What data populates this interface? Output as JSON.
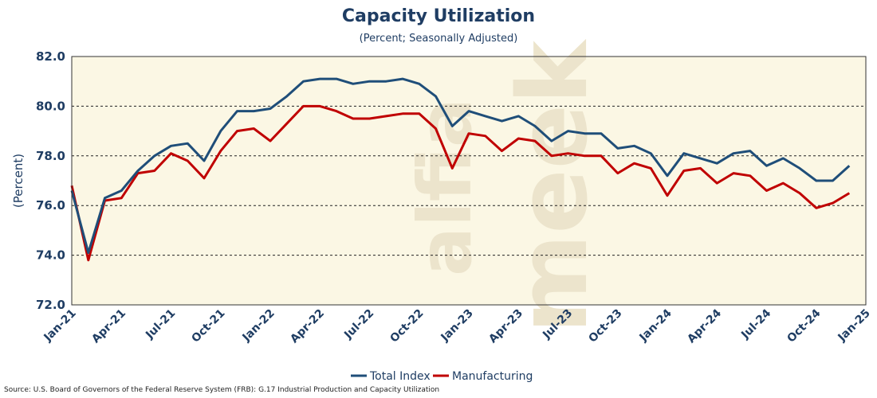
{
  "chart_data": {
    "type": "line",
    "title": "Capacity Utilization",
    "subtitle": "(Percent; Seasonally Adjusted)",
    "ylabel": "(Percent)",
    "xlabel": "",
    "ylim": [
      72.0,
      82.0
    ],
    "y_ticks": [
      "72.0",
      "74.0",
      "76.0",
      "78.0",
      "80.0",
      "82.0"
    ],
    "x_tick_labels": [
      "Jan-21",
      "Apr-21",
      "Jul-21",
      "Oct-21",
      "Jan-22",
      "Apr-22",
      "Jul-22",
      "Oct-22",
      "Jan-23",
      "Apr-23",
      "Jul-23",
      "Oct-23",
      "Jan-24",
      "Apr-24",
      "Jul-24",
      "Oct-24",
      "Jan-25"
    ],
    "x": [
      "2021-01",
      "2021-02",
      "2021-03",
      "2021-04",
      "2021-05",
      "2021-06",
      "2021-07",
      "2021-08",
      "2021-09",
      "2021-10",
      "2021-11",
      "2021-12",
      "2022-01",
      "2022-02",
      "2022-03",
      "2022-04",
      "2022-05",
      "2022-06",
      "2022-07",
      "2022-08",
      "2022-09",
      "2022-10",
      "2022-11",
      "2022-12",
      "2023-01",
      "2023-02",
      "2023-03",
      "2023-04",
      "2023-05",
      "2023-06",
      "2023-07",
      "2023-08",
      "2023-09",
      "2023-10",
      "2023-11",
      "2023-12",
      "2024-01",
      "2024-02",
      "2024-03",
      "2024-04",
      "2024-05",
      "2024-06",
      "2024-07",
      "2024-08",
      "2024-09",
      "2024-10",
      "2024-11",
      "2024-12"
    ],
    "series": [
      {
        "name": "Total Index",
        "color": "#1f4e79",
        "values": [
          76.6,
          74.1,
          76.3,
          76.6,
          77.4,
          78.0,
          78.4,
          78.5,
          77.8,
          79.0,
          79.8,
          79.8,
          79.9,
          80.4,
          81.0,
          81.1,
          81.1,
          80.9,
          81.0,
          81.0,
          81.1,
          80.9,
          80.4,
          79.2,
          79.8,
          79.6,
          79.4,
          79.6,
          79.2,
          78.6,
          79.0,
          78.9,
          78.9,
          78.3,
          78.4,
          78.1,
          77.2,
          78.1,
          77.9,
          77.7,
          78.1,
          78.2,
          77.6,
          77.9,
          77.5,
          77.0,
          77.0,
          77.6
        ]
      },
      {
        "name": "Manufacturing",
        "color": "#c00000",
        "values": [
          76.8,
          73.8,
          76.2,
          76.3,
          77.3,
          77.4,
          78.1,
          77.8,
          77.1,
          78.2,
          79.0,
          79.1,
          78.6,
          79.3,
          80.0,
          80.0,
          79.8,
          79.5,
          79.5,
          79.6,
          79.7,
          79.7,
          79.1,
          77.5,
          78.9,
          78.8,
          78.2,
          78.7,
          78.6,
          78.0,
          78.1,
          78.0,
          78.0,
          77.3,
          77.7,
          77.5,
          76.4,
          77.4,
          77.5,
          76.9,
          77.3,
          77.2,
          76.6,
          76.9,
          76.5,
          75.9,
          76.1,
          76.5
        ]
      }
    ],
    "grid": "horizontal-dashed",
    "legend_position": "bottom-center",
    "plot_background": "#fbf7e4",
    "watermark": "alfia meek"
  },
  "source_note": "Source: U.S. Board of Governors of the Federal Reserve System (FRB): G.17 Industrial Production and Capacity Utilization"
}
